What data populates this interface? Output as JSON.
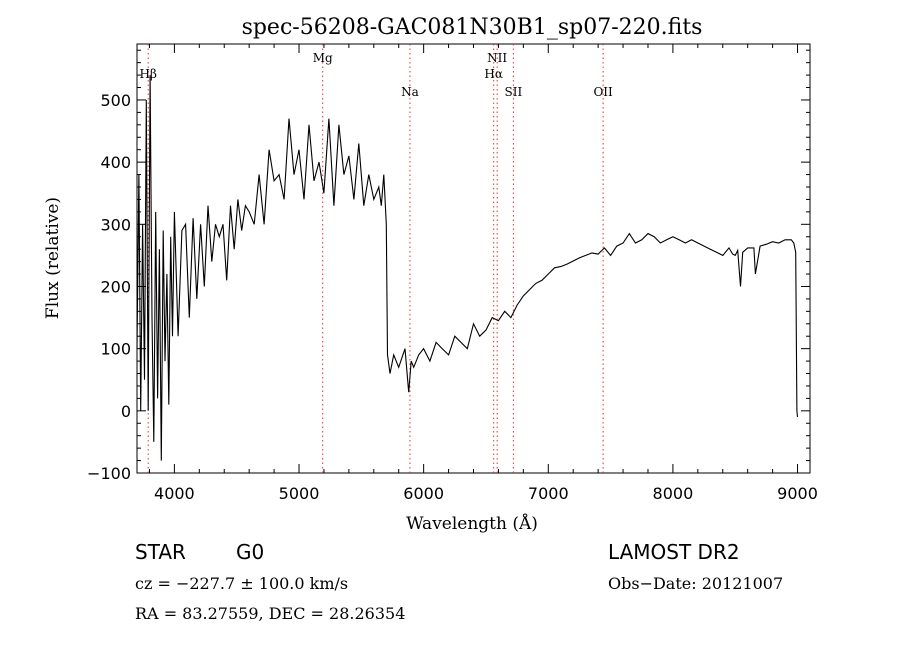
{
  "chart_data": {
    "type": "line",
    "title": "spec-56208-GAC081N30B1_sp07-220.fits",
    "xlabel": "Wavelength (Å)",
    "ylabel": "Flux (relative)",
    "xlim": [
      3700,
      9100
    ],
    "ylim": [
      -100,
      590
    ],
    "xticks": [
      4000,
      5000,
      6000,
      7000,
      8000,
      9000
    ],
    "yticks": [
      -100,
      0,
      100,
      200,
      300,
      400,
      500
    ],
    "grid": false,
    "line_color": "#000000",
    "marker_color": "#e03030",
    "lines": [
      {
        "label": "Hβ",
        "x": 3790
      },
      {
        "label": "Mg",
        "x": 5190
      },
      {
        "label": "Na",
        "x": 5890
      },
      {
        "label": "NII",
        "x": 6590
      },
      {
        "label": "Hα",
        "x": 6562
      },
      {
        "label": "SII",
        "x": 6720
      },
      {
        "label": "OII",
        "x": 7440
      }
    ],
    "series": [
      {
        "x": [
          3700,
          3715,
          3730,
          3745,
          3760,
          3775,
          3790,
          3805,
          3820,
          3835,
          3850,
          3865,
          3880,
          3895,
          3910,
          3925,
          3940,
          3955,
          3970,
          3985,
          4000,
          4030,
          4060,
          4090,
          4120,
          4150,
          4180,
          4210,
          4240,
          4270,
          4300,
          4330,
          4360,
          4390,
          4420,
          4450,
          4480,
          4510,
          4540,
          4570,
          4600,
          4640,
          4680,
          4720,
          4760,
          4800,
          4840,
          4880,
          4920,
          4960,
          5000,
          5040,
          5080,
          5120,
          5160,
          5200,
          5240,
          5280,
          5320,
          5360,
          5400,
          5440,
          5480,
          5520,
          5560,
          5600,
          5640,
          5660,
          5680,
          5700,
          5710,
          5730,
          5760,
          5800,
          5850,
          5880,
          5900,
          5920,
          5960,
          6000,
          6050,
          6100,
          6150,
          6200,
          6250,
          6300,
          6350,
          6400,
          6450,
          6500,
          6550,
          6600,
          6650,
          6700,
          6750,
          6800,
          6850,
          6900,
          6950,
          7000,
          7050,
          7100,
          7150,
          7200,
          7250,
          7300,
          7350,
          7400,
          7450,
          7500,
          7550,
          7600,
          7650,
          7700,
          7750,
          7800,
          7850,
          7900,
          7950,
          8000,
          8050,
          8100,
          8150,
          8200,
          8250,
          8300,
          8350,
          8400,
          8450,
          8480,
          8500,
          8520,
          8542,
          8560,
          8600,
          8650,
          8662,
          8700,
          8750,
          8800,
          8850,
          8900,
          8950,
          8970,
          8985,
          8995,
          9000
        ],
        "y": [
          100,
          380,
          0,
          300,
          50,
          500,
          0,
          540,
          150,
          -50,
          320,
          20,
          260,
          -80,
          290,
          80,
          220,
          10,
          280,
          120,
          320,
          120,
          290,
          300,
          150,
          310,
          180,
          300,
          200,
          330,
          240,
          300,
          280,
          300,
          210,
          330,
          260,
          340,
          290,
          330,
          320,
          300,
          380,
          300,
          420,
          370,
          380,
          340,
          470,
          380,
          420,
          340,
          460,
          370,
          400,
          350,
          470,
          330,
          460,
          380,
          410,
          340,
          430,
          330,
          380,
          340,
          360,
          330,
          380,
          300,
          90,
          60,
          90,
          70,
          100,
          30,
          80,
          70,
          90,
          100,
          80,
          110,
          100,
          90,
          120,
          110,
          100,
          140,
          120,
          130,
          150,
          145,
          160,
          150,
          170,
          185,
          195,
          205,
          210,
          220,
          230,
          232,
          236,
          241,
          246,
          250,
          254,
          252,
          262,
          250,
          265,
          270,
          285,
          270,
          275,
          285,
          280,
          270,
          275,
          280,
          275,
          270,
          275,
          270,
          265,
          260,
          255,
          250,
          262,
          252,
          250,
          258,
          200,
          255,
          262,
          262,
          220,
          265,
          268,
          272,
          270,
          275,
          275,
          270,
          255,
          0,
          -10
        ]
      }
    ]
  },
  "info": {
    "object_class": "STAR",
    "subclass": "G0",
    "survey": "LAMOST DR2",
    "redshift": "cz = −227.7 ± 100.0 km/s",
    "obs_date": "Obs−Date: 20121007",
    "coords": "RA =  83.27559, DEC =  28.26354"
  }
}
